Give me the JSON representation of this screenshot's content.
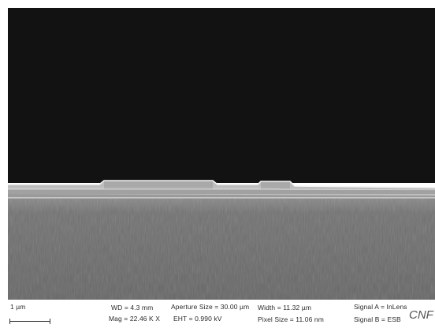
{
  "image": {
    "kind": "SEM cross-section micrograph",
    "colors": {
      "vacuum": "#121212",
      "film": "#d2d2d2",
      "substrate": "#6e6e6e"
    }
  },
  "info_bar": {
    "scale_label": "1 µm",
    "wd": "WD = 4.3 mm",
    "mag": "Mag =  22.46 K X",
    "aperture": "Aperture Size = 30.00 µm",
    "eht": "EHT = 0.990 kV",
    "width": "Width = 11.32 µm",
    "pixel_size": "Pixel Size = 11.06 nm",
    "signal_a": "Signal A = InLens",
    "signal_b": "Signal B = ESB",
    "logo": "CNF"
  }
}
